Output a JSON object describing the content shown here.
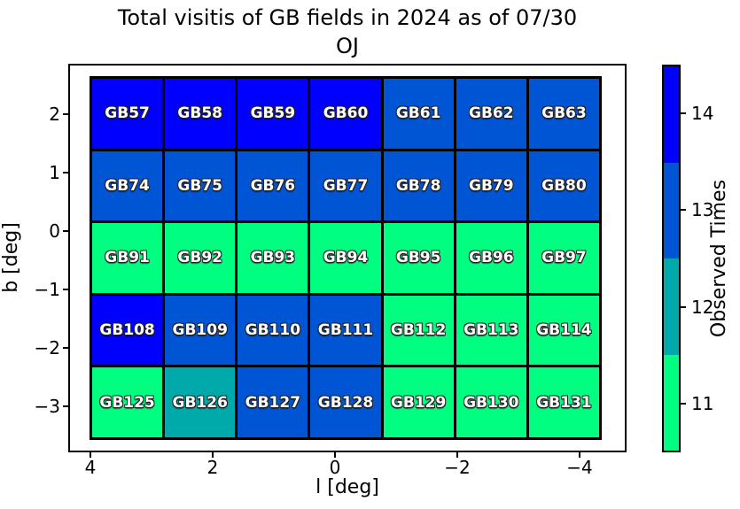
{
  "figure": {
    "title_line1": "Total visitis of GB fields in 2024 as of 07/30",
    "title_line2": "OJ",
    "xlabel": "l [deg]",
    "ylabel": "b [deg]",
    "xtick_labels": [
      "4",
      "2",
      "0",
      "−2",
      "−4"
    ],
    "ytick_labels": [
      "2",
      "1",
      "0",
      "−1",
      "−2",
      "−3"
    ],
    "colorbar_label": "Observed Times",
    "colorbar_tick_labels": [
      "14",
      "13",
      "12",
      "11"
    ]
  },
  "chart_data": {
    "type": "heatmap",
    "title": "Total visitis of GB fields in 2024 as of 07/30 OJ",
    "xlabel": "l [deg]",
    "ylabel": "b [deg]",
    "x_axis": {
      "ticks": [
        4,
        2,
        0,
        -2,
        -4
      ],
      "inverted": true
    },
    "y_axis": {
      "ticks": [
        2,
        1,
        0,
        -1,
        -2,
        -3
      ]
    },
    "colorbar": {
      "label": "Observed Times",
      "ticks": [
        14,
        13,
        12,
        11
      ],
      "position": "right"
    },
    "value_colors": {
      "11": "#00FF80",
      "12": "#00AAAA",
      "13": "#0055D4",
      "14": "#0000FF"
    },
    "rows": [
      {
        "cells": [
          {
            "label": "GB57",
            "value": 14
          },
          {
            "label": "GB58",
            "value": 14
          },
          {
            "label": "GB59",
            "value": 14
          },
          {
            "label": "GB60",
            "value": 14
          },
          {
            "label": "GB61",
            "value": 13
          },
          {
            "label": "GB62",
            "value": 13
          },
          {
            "label": "GB63",
            "value": 13
          }
        ]
      },
      {
        "cells": [
          {
            "label": "GB74",
            "value": 13
          },
          {
            "label": "GB75",
            "value": 13
          },
          {
            "label": "GB76",
            "value": 13
          },
          {
            "label": "GB77",
            "value": 13
          },
          {
            "label": "GB78",
            "value": 13
          },
          {
            "label": "GB79",
            "value": 13
          },
          {
            "label": "GB80",
            "value": 13
          }
        ]
      },
      {
        "cells": [
          {
            "label": "GB91",
            "value": 11
          },
          {
            "label": "GB92",
            "value": 11
          },
          {
            "label": "GB93",
            "value": 11
          },
          {
            "label": "GB94",
            "value": 11
          },
          {
            "label": "GB95",
            "value": 11
          },
          {
            "label": "GB96",
            "value": 11
          },
          {
            "label": "GB97",
            "value": 11
          }
        ]
      },
      {
        "cells": [
          {
            "label": "GB108",
            "value": 14
          },
          {
            "label": "GB109",
            "value": 13
          },
          {
            "label": "GB110",
            "value": 13
          },
          {
            "label": "GB111",
            "value": 13
          },
          {
            "label": "GB112",
            "value": 11
          },
          {
            "label": "GB113",
            "value": 11
          },
          {
            "label": "GB114",
            "value": 11
          }
        ]
      },
      {
        "cells": [
          {
            "label": "GB125",
            "value": 11
          },
          {
            "label": "GB126",
            "value": 12
          },
          {
            "label": "GB127",
            "value": 13
          },
          {
            "label": "GB128",
            "value": 13
          },
          {
            "label": "GB129",
            "value": 11
          },
          {
            "label": "GB130",
            "value": 11
          },
          {
            "label": "GB131",
            "value": 11
          }
        ]
      }
    ]
  }
}
